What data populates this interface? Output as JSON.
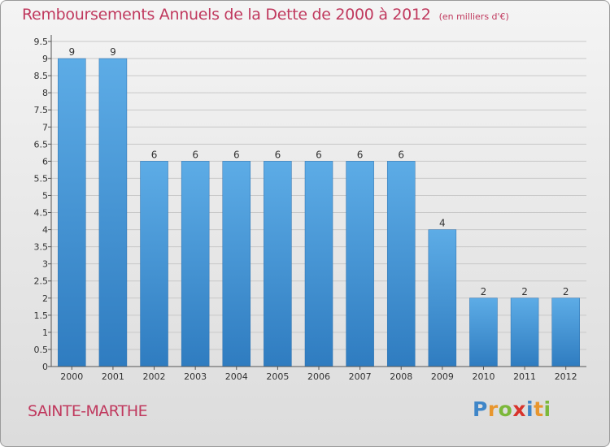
{
  "title": "Remboursements Annuels de la Dette de 2000 à 2012",
  "unit": "(en milliers d'€)",
  "city": "SAINTE-MARTHE",
  "logo": {
    "letters": [
      "P",
      "r",
      "o",
      "x",
      "i",
      "t",
      "i"
    ],
    "colors": [
      "#3f86c8",
      "#e8962e",
      "#7cb83a",
      "#d8342c",
      "#3f86c8",
      "#e8962e",
      "#7cb83a"
    ]
  },
  "chart_data": {
    "type": "bar",
    "title": "Remboursements Annuels de la Dette de 2000 à 2012",
    "xlabel": "",
    "ylabel": "",
    "categories": [
      "2000",
      "2001",
      "2002",
      "2003",
      "2004",
      "2005",
      "2006",
      "2007",
      "2008",
      "2009",
      "2010",
      "2011",
      "2012"
    ],
    "values": [
      9,
      9,
      6,
      6,
      6,
      6,
      6,
      6,
      6,
      4,
      2,
      2,
      2
    ],
    "ylim": [
      0,
      9.5
    ],
    "yticks": [
      "0",
      "0.5",
      "1",
      "1.5",
      "2",
      "2.5",
      "3",
      "3.5",
      "4",
      "4.5",
      "5",
      "5.5",
      "6",
      "6.5",
      "7",
      "7.5",
      "8",
      "8.5",
      "9",
      "9.5"
    ],
    "colors": {
      "bar_light": "#5dace6",
      "bar_dark": "#2f7cc0",
      "grid": "#c8c8c8",
      "axis": "#555555"
    }
  }
}
